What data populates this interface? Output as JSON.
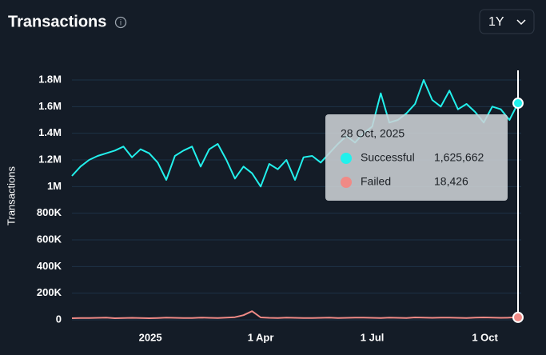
{
  "chart_data": {
    "type": "line",
    "title": "Transactions",
    "range_button": "1Y",
    "y_label": "Transactions",
    "x": [
      "2024-10-29",
      "2024-11-05",
      "2024-11-12",
      "2024-11-19",
      "2024-11-26",
      "2024-12-03",
      "2024-12-10",
      "2024-12-17",
      "2024-12-24",
      "2024-12-31",
      "2025-01-07",
      "2025-01-14",
      "2025-01-21",
      "2025-01-28",
      "2025-02-04",
      "2025-02-11",
      "2025-02-18",
      "2025-02-25",
      "2025-03-04",
      "2025-03-11",
      "2025-03-18",
      "2025-03-25",
      "2025-04-01",
      "2025-04-08",
      "2025-04-15",
      "2025-04-22",
      "2025-04-29",
      "2025-05-06",
      "2025-05-13",
      "2025-05-20",
      "2025-05-27",
      "2025-06-03",
      "2025-06-10",
      "2025-06-17",
      "2025-06-24",
      "2025-07-01",
      "2025-07-08",
      "2025-07-15",
      "2025-07-22",
      "2025-07-29",
      "2025-08-05",
      "2025-08-12",
      "2025-08-19",
      "2025-08-26",
      "2025-09-02",
      "2025-09-09",
      "2025-09-16",
      "2025-09-23",
      "2025-09-30",
      "2025-10-07",
      "2025-10-14",
      "2025-10-21",
      "2025-10-28"
    ],
    "series": [
      {
        "name": "Successful",
        "color": "#22f0ec",
        "values": [
          1080000,
          1150000,
          1200000,
          1230000,
          1250000,
          1270000,
          1300000,
          1220000,
          1280000,
          1250000,
          1180000,
          1050000,
          1230000,
          1270000,
          1300000,
          1150000,
          1280000,
          1320000,
          1200000,
          1060000,
          1150000,
          1100000,
          1000000,
          1170000,
          1130000,
          1200000,
          1050000,
          1220000,
          1230000,
          1180000,
          1250000,
          1320000,
          1380000,
          1330000,
          1400000,
          1450000,
          1700000,
          1480000,
          1500000,
          1550000,
          1620000,
          1800000,
          1650000,
          1600000,
          1720000,
          1580000,
          1620000,
          1560000,
          1480000,
          1600000,
          1580000,
          1500000,
          1625662
        ]
      },
      {
        "name": "Failed",
        "color": "#f08a86",
        "values": [
          12000,
          14000,
          13000,
          15000,
          16000,
          12000,
          14000,
          15000,
          13000,
          12000,
          14000,
          16000,
          15000,
          13000,
          14000,
          17000,
          15000,
          14000,
          16000,
          20000,
          35000,
          65000,
          18000,
          15000,
          14000,
          16000,
          15000,
          14000,
          13000,
          15000,
          16000,
          14000,
          15000,
          17000,
          16000,
          15000,
          14000,
          16000,
          15000,
          14000,
          18000,
          16000,
          15000,
          17000,
          16000,
          15000,
          14000,
          16000,
          18000,
          17000,
          15000,
          16000,
          18426
        ]
      }
    ],
    "xlim": [
      "2024-10-29",
      "2025-10-28"
    ],
    "xticks": [
      {
        "value": "2025-01-01",
        "label": "2025"
      },
      {
        "value": "2025-04-01",
        "label": "1 Apr"
      },
      {
        "value": "2025-07-01",
        "label": "1 Jul"
      },
      {
        "value": "2025-10-01",
        "label": "1 Oct"
      }
    ],
    "ylim": [
      0,
      1800000
    ],
    "yticks": [
      0,
      {
        "value": 200000,
        "label": "200K"
      },
      {
        "value": 400000,
        "label": "400K"
      },
      {
        "value": 600000,
        "label": "600K"
      },
      {
        "value": 800000,
        "label": "800K"
      },
      {
        "value": 1000000,
        "label": "1M"
      },
      {
        "value": 1200000,
        "label": "1.2M"
      },
      {
        "value": 1400000,
        "label": "1.4M"
      },
      {
        "value": 1600000,
        "label": "1.6M"
      },
      {
        "value": 1800000,
        "label": "1.8M"
      }
    ],
    "grid": true,
    "tooltip": {
      "x": "2025-10-28",
      "label": "28 Oct, 2025",
      "value_labels": [
        "1,625,662",
        "18,426"
      ]
    }
  }
}
